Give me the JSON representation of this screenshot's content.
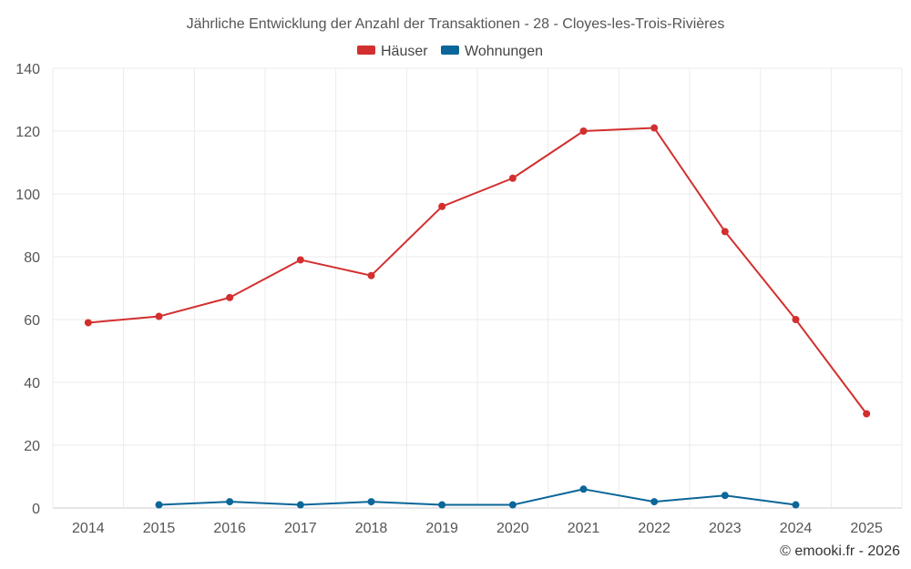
{
  "chart_data": {
    "type": "line",
    "title": "Jährliche Entwicklung der Anzahl der Transaktionen - 28 - Cloyes-les-Trois-Rivières",
    "xlabel": "",
    "ylabel": "",
    "categories": [
      "2014",
      "2015",
      "2016",
      "2017",
      "2018",
      "2019",
      "2020",
      "2021",
      "2022",
      "2023",
      "2024",
      "2025"
    ],
    "ylim": [
      0,
      140
    ],
    "yticks": [
      0,
      20,
      40,
      60,
      80,
      100,
      120,
      140
    ],
    "grid": true,
    "legend_position": "top-center",
    "series": [
      {
        "name": "Häuser",
        "color": "#d32f2f",
        "values": [
          59,
          61,
          67,
          79,
          74,
          96,
          105,
          120,
          121,
          88,
          60,
          30
        ]
      },
      {
        "name": "Wohnungen",
        "color": "#0b6699",
        "values": [
          null,
          1,
          2,
          1,
          2,
          1,
          1,
          6,
          2,
          4,
          1,
          null
        ]
      }
    ]
  },
  "credit": "© emooki.fr - 2026"
}
